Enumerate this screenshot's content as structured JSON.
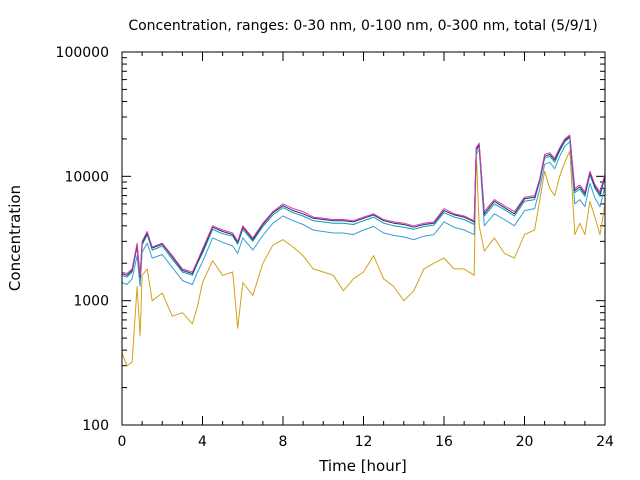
{
  "chart_data": {
    "type": "line",
    "title": "Concentration, ranges: 0-30 nm, 0-100 nm, 0-300 nm, total (5/9/1)",
    "xlabel": "Time [hour]",
    "ylabel": "Concentration",
    "xlim": [
      0,
      24
    ],
    "ylim": [
      100,
      100000
    ],
    "yscale": "log",
    "grid": false,
    "legend": "none",
    "x_ticks": [
      0,
      4,
      8,
      12,
      16,
      20,
      24
    ],
    "x_tick_labels": [
      "0",
      "4",
      "8",
      "12",
      "16",
      "20",
      "24"
    ],
    "y_ticks": [
      100,
      1000,
      10000,
      100000
    ],
    "y_tick_labels": [
      "100",
      "1000",
      "10000",
      "100000"
    ],
    "x": [
      0,
      0.25,
      0.5,
      0.75,
      0.9,
      1.0,
      1.25,
      1.5,
      2.0,
      2.5,
      3.0,
      3.5,
      3.75,
      4.0,
      4.5,
      5.0,
      5.5,
      5.75,
      6.0,
      6.5,
      7.0,
      7.5,
      8.0,
      8.5,
      9.0,
      9.5,
      10.0,
      10.5,
      11.0,
      11.5,
      12.0,
      12.5,
      13.0,
      13.5,
      14.0,
      14.5,
      15.0,
      15.5,
      16.0,
      16.5,
      17.0,
      17.5,
      17.6,
      17.75,
      18.0,
      18.5,
      19.0,
      19.5,
      20.0,
      20.5,
      20.75,
      21.0,
      21.25,
      21.5,
      21.75,
      22.0,
      22.25,
      22.5,
      22.75,
      23.0,
      23.25,
      23.5,
      23.75,
      24.0
    ],
    "series": [
      {
        "color": "#e0399c",
        "values": [
          1700,
          1650,
          1800,
          2900,
          1600,
          3000,
          3600,
          2700,
          2900,
          2300,
          1800,
          1700,
          2100,
          2600,
          4000,
          3700,
          3500,
          3000,
          4000,
          3200,
          4200,
          5200,
          6000,
          5500,
          5200,
          4700,
          4600,
          4500,
          4500,
          4400,
          4700,
          5000,
          4500,
          4300,
          4200,
          4000,
          4200,
          4300,
          5500,
          5000,
          4800,
          4400,
          17000,
          18500,
          5200,
          6500,
          5800,
          5200,
          6800,
          7000,
          9500,
          15000,
          15500,
          14000,
          17000,
          20000,
          21500,
          8000,
          8500,
          7500,
          11000,
          8600,
          7500,
          10500
        ]
      },
      {
        "color": "#1a2b8a",
        "values": [
          1650,
          1600,
          1750,
          2800,
          1550,
          2900,
          3500,
          2650,
          2850,
          2250,
          1750,
          1650,
          2050,
          2500,
          3900,
          3600,
          3400,
          2950,
          3900,
          3100,
          4100,
          5100,
          5800,
          5300,
          5000,
          4600,
          4500,
          4400,
          4400,
          4300,
          4600,
          4900,
          4400,
          4200,
          4100,
          3900,
          4100,
          4200,
          5300,
          4900,
          4700,
          4300,
          16500,
          18000,
          5000,
          6300,
          5600,
          5000,
          6600,
          6800,
          9300,
          14500,
          15000,
          13500,
          16500,
          19500,
          21000,
          7700,
          8200,
          7200,
          10700,
          8300,
          7200,
          10200
        ]
      },
      {
        "color": "#0a9e9a",
        "values": [
          1600,
          1550,
          1700,
          2700,
          1500,
          2800,
          3400,
          2550,
          2750,
          2150,
          1700,
          1600,
          2000,
          2400,
          3750,
          3450,
          3300,
          2850,
          3750,
          3000,
          3950,
          4900,
          5600,
          5100,
          4800,
          4400,
          4300,
          4200,
          4200,
          4100,
          4400,
          4700,
          4200,
          4000,
          3900,
          3750,
          3950,
          4050,
          5100,
          4700,
          4500,
          4100,
          16000,
          17500,
          4800,
          6000,
          5400,
          4800,
          6300,
          6500,
          9000,
          14000,
          14500,
          13000,
          16000,
          19000,
          20500,
          7400,
          7900,
          6900,
          10300,
          8000,
          6900,
          9800
        ]
      },
      {
        "color": "#3a9bd9",
        "values": [
          1400,
          1350,
          1500,
          2300,
          1300,
          2450,
          2900,
          2200,
          2350,
          1850,
          1450,
          1350,
          1700,
          2050,
          3200,
          2950,
          2750,
          2400,
          3200,
          2550,
          3350,
          4200,
          4800,
          4400,
          4100,
          3700,
          3600,
          3500,
          3500,
          3400,
          3700,
          3950,
          3500,
          3350,
          3250,
          3100,
          3300,
          3400,
          4300,
          3900,
          3700,
          3400,
          15000,
          16500,
          4000,
          5000,
          4500,
          4000,
          5300,
          5500,
          7800,
          12500,
          13000,
          11500,
          14500,
          17500,
          19000,
          6000,
          6500,
          5700,
          8800,
          6700,
          5700,
          8300
        ]
      },
      {
        "color": "#d4a017",
        "values": [
          380,
          300,
          320,
          1300,
          520,
          1600,
          1800,
          1000,
          1150,
          750,
          800,
          650,
          900,
          1400,
          2100,
          1600,
          1700,
          600,
          1400,
          1100,
          2000,
          2800,
          3100,
          2700,
          2300,
          1800,
          1700,
          1600,
          1200,
          1500,
          1700,
          2300,
          1500,
          1300,
          1000,
          1200,
          1800,
          2000,
          2200,
          1800,
          1800,
          1600,
          16000,
          4000,
          2500,
          3200,
          2400,
          2200,
          3400,
          3700,
          6300,
          11000,
          8000,
          7000,
          10000,
          13000,
          16000,
          3400,
          4200,
          3400,
          6300,
          4700,
          3400,
          6000
        ]
      }
    ]
  }
}
